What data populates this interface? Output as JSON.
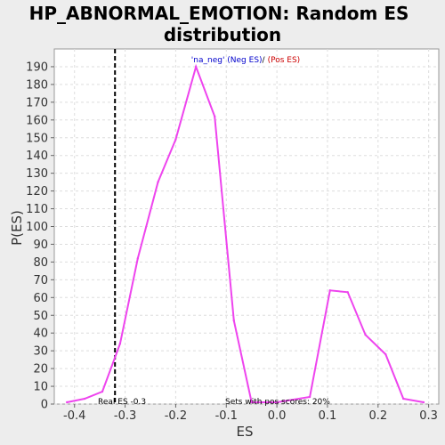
{
  "chart_data": {
    "type": "line",
    "title_line1": "HP_ABNORMAL_EMOTION: Random ES",
    "title_line2": "distribution",
    "xlabel": "ES",
    "ylabel": "P(ES)",
    "xlim": [
      -0.44,
      0.32
    ],
    "ylim": [
      0,
      200
    ],
    "xticks": [
      -0.4,
      -0.3,
      -0.2,
      -0.1,
      0.0,
      0.1,
      0.2,
      0.3
    ],
    "xtick_labels": [
      "-0.4",
      "-0.3",
      "-0.2",
      "-0.1",
      "0.0",
      "0.1",
      "0.2",
      "0.3"
    ],
    "yticks": [
      0,
      10,
      20,
      30,
      40,
      50,
      60,
      70,
      80,
      90,
      100,
      110,
      120,
      130,
      140,
      150,
      160,
      170,
      180,
      190
    ],
    "grid": true,
    "legend": {
      "neg_label": "'na_neg' (Neg ES)",
      "separator": "/",
      "pos_label": "(Pos ES)",
      "neg_color": "#0000cc",
      "pos_color": "#cc0000"
    },
    "series": [
      {
        "color": "#ee44ee",
        "points": [
          [
            -0.415,
            1
          ],
          [
            -0.38,
            3
          ],
          [
            -0.345,
            7
          ],
          [
            -0.31,
            34
          ],
          [
            -0.275,
            82
          ],
          [
            -0.235,
            125
          ],
          [
            -0.2,
            149
          ],
          [
            -0.16,
            190
          ],
          [
            -0.123,
            162
          ],
          [
            -0.085,
            47
          ],
          [
            -0.05,
            1
          ],
          [
            0.0,
            1
          ],
          [
            0.065,
            4
          ],
          [
            0.105,
            64
          ],
          [
            0.14,
            63
          ],
          [
            0.175,
            39
          ],
          [
            0.215,
            28
          ],
          [
            0.25,
            3
          ],
          [
            0.29,
            1
          ]
        ]
      }
    ],
    "real_es": -0.32,
    "real_es_label": "Real ES -0.3",
    "pos_scores_label": "Sets with pos scores: 20%"
  }
}
